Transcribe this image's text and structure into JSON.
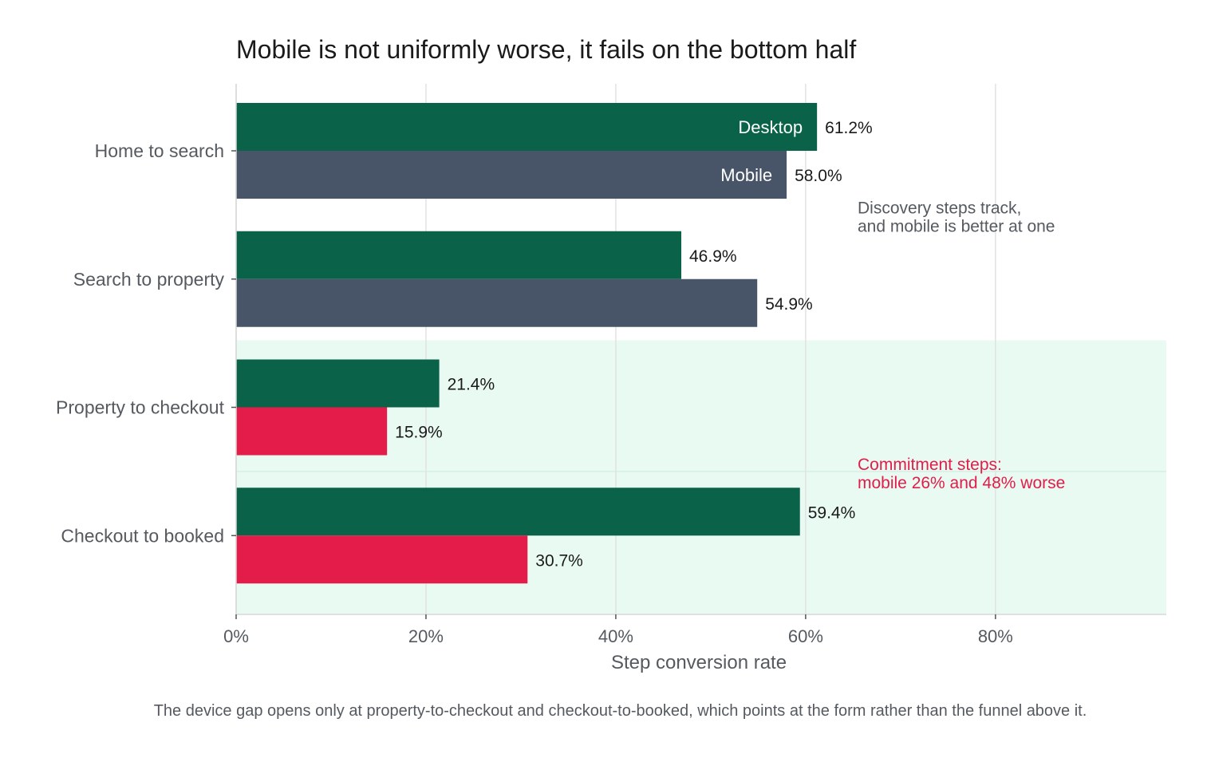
{
  "chart_data": {
    "type": "bar",
    "orientation": "horizontal",
    "title": "Mobile is not uniformly worse, it fails on the bottom half",
    "xlabel": "Step conversion rate",
    "ylabel": "",
    "xlim": [
      0,
      98
    ],
    "x_ticks": [
      {
        "value": 0,
        "label": "0%"
      },
      {
        "value": 20,
        "label": "20%"
      },
      {
        "value": 40,
        "label": "40%"
      },
      {
        "value": 60,
        "label": "60%"
      },
      {
        "value": 80,
        "label": "80%"
      }
    ],
    "categories": [
      "Home to search",
      "Search to property",
      "Property to checkout",
      "Checkout to booked"
    ],
    "series": [
      {
        "name": "Desktop",
        "values": [
          61.2,
          46.9,
          21.4,
          59.4
        ],
        "labels": [
          "61.2%",
          "46.9%",
          "21.4%",
          "59.4%"
        ]
      },
      {
        "name": "Mobile",
        "values": [
          58.0,
          54.9,
          15.9,
          30.7
        ],
        "labels": [
          "58.0%",
          "54.9%",
          "15.9%",
          "30.7%"
        ]
      }
    ],
    "colors": {
      "desktop": "#0a6349",
      "mobile": "#485569",
      "mobile_highlight": "#e31c4a",
      "highlight_band": "#e9faf2",
      "grid": "#e2e2e2"
    },
    "grid": true,
    "legend": "inline labels on first bar pair",
    "highlighted_categories": [
      "Property to checkout",
      "Checkout to booked"
    ],
    "annotations": [
      {
        "text": [
          "Discovery steps track,",
          "and mobile is better at one"
        ],
        "color": "#555a60",
        "y_between": [
          0,
          1
        ]
      },
      {
        "text": [
          "Commitment steps:",
          "mobile 26% and 48% worse"
        ],
        "color": "#e31c4a",
        "y_between": [
          2,
          3
        ]
      }
    ]
  },
  "caption": "The device gap opens only at property-to-checkout and checkout-to-booked, which points at the form rather than the funnel above it."
}
